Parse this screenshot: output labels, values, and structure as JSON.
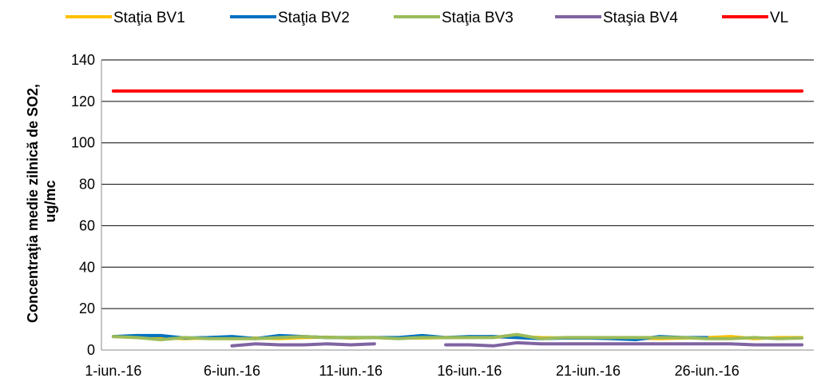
{
  "chart_data": {
    "type": "line",
    "title": "",
    "ylabel_lines": [
      "Concentraţia medie zilnică de SO2,",
      "ug/mc"
    ],
    "xlabel": "",
    "ylim": [
      0,
      140
    ],
    "y_ticks": [
      0,
      20,
      40,
      60,
      80,
      100,
      120,
      140
    ],
    "x": [
      "1-iun.-16",
      "2-iun.-16",
      "3-iun.-16",
      "4-iun.-16",
      "5-iun.-16",
      "6-iun.-16",
      "7-iun.-16",
      "8-iun.-16",
      "9-iun.-16",
      "10-iun.-16",
      "11-iun.-16",
      "12-iun.-16",
      "13-iun.-16",
      "14-iun.-16",
      "15-iun.-16",
      "16-iun.-16",
      "17-iun.-16",
      "18-iun.-16",
      "19-iun.-16",
      "20-iun.-16",
      "21-iun.-16",
      "22-iun.-16",
      "23-iun.-16",
      "24-iun.-16",
      "25-iun.-16",
      "26-iun.-16",
      "27-iun.-16",
      "28-iun.-16",
      "29-iun.-16",
      "30-iun.-16"
    ],
    "x_tick_labels": [
      "1-iun.-16",
      "6-iun.-16",
      "11-iun.-16",
      "16-iun.-16",
      "21-iun.-16",
      "26-iun.-16"
    ],
    "grid": "horizontal",
    "legend": "top",
    "series": [
      {
        "name": "Staţia BV1",
        "color": "#FFC000",
        "values": [
          6.5,
          6.0,
          5.8,
          5.5,
          5.8,
          5.5,
          5.8,
          5.5,
          6.0,
          6.2,
          5.8,
          6.0,
          5.8,
          5.8,
          6.0,
          6.0,
          6.2,
          6.5,
          6.0,
          5.8,
          5.8,
          5.8,
          5.8,
          5.5,
          5.8,
          6.0,
          6.5,
          5.5,
          6.0,
          6.0
        ]
      },
      {
        "name": "Staţia BV2",
        "color": "#0070C0",
        "values": [
          6.5,
          7.0,
          7.0,
          5.8,
          6.0,
          6.5,
          5.5,
          7.0,
          6.5,
          6.0,
          6.0,
          6.0,
          6.0,
          7.0,
          6.0,
          6.5,
          6.5,
          6.0,
          5.5,
          5.8,
          5.8,
          5.5,
          5.0,
          6.5,
          6.0,
          6.0,
          null,
          null,
          null,
          null
        ]
      },
      {
        "name": "Staţia BV3",
        "color": "#9BBB59",
        "values": [
          6.5,
          6.0,
          5.0,
          6.0,
          5.5,
          5.5,
          5.5,
          6.0,
          6.5,
          6.0,
          6.0,
          6.0,
          5.5,
          6.0,
          6.0,
          6.0,
          6.0,
          7.5,
          5.5,
          6.0,
          6.0,
          6.0,
          6.0,
          6.0,
          6.0,
          5.5,
          5.5,
          6.0,
          5.5,
          5.8
        ]
      },
      {
        "name": "Staşia BV4",
        "color": "#8064A2",
        "values": [
          null,
          null,
          null,
          null,
          null,
          2.0,
          3.0,
          2.5,
          2.5,
          3.0,
          2.5,
          3.0,
          null,
          null,
          2.5,
          2.5,
          2.0,
          3.5,
          3.0,
          3.0,
          3.0,
          3.0,
          3.0,
          3.0,
          3.0,
          3.0,
          3.0,
          2.5,
          2.5,
          2.5
        ]
      },
      {
        "name": "VL",
        "color": "#FF0000",
        "values": [
          125,
          125,
          125,
          125,
          125,
          125,
          125,
          125,
          125,
          125,
          125,
          125,
          125,
          125,
          125,
          125,
          125,
          125,
          125,
          125,
          125,
          125,
          125,
          125,
          125,
          125,
          125,
          125,
          125,
          125
        ]
      }
    ]
  }
}
